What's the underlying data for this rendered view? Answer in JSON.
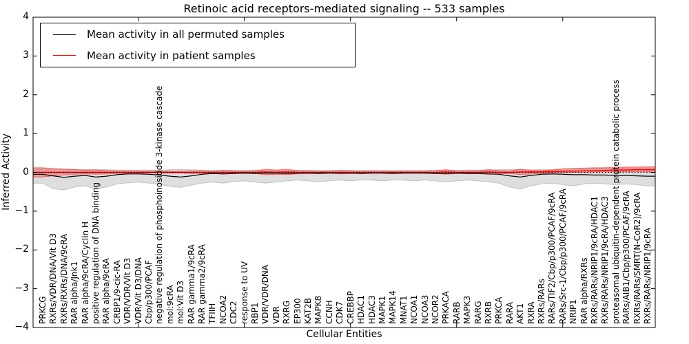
{
  "accent_colors": {
    "permuted": "#000000",
    "patient": "#ff0000",
    "permuted_band": "rgba(0,0,0,0.13)",
    "patient_band": "rgba(255,0,0,0.30)"
  },
  "chart_data": {
    "type": "line",
    "title": "Retinoic acid receptors-mediated signaling -- 533 samples",
    "xlabel": "Cellular Entities",
    "ylabel": "Inferred Activity",
    "ylim": [
      -4,
      4
    ],
    "ytick_labels": [
      "4",
      "3",
      "2",
      "1",
      "0",
      "−1",
      "−2",
      "−3",
      "−4"
    ],
    "ytick_values": [
      4,
      3,
      2,
      1,
      0,
      -1,
      -2,
      -3,
      -4
    ],
    "grid": false,
    "zero_line": true,
    "legend_position": "upper left",
    "categories": [
      "PRKCG",
      "RXRs/VDR/DNA/Vit D3",
      "RXRs/RXRs/DNA/9cRA",
      "RAR alpha/Jnk1",
      "RAR alpha/9cRA/Cyclin H",
      "positive regulation of DNA binding",
      "RAR alpha/9cRA",
      "CRBP1/9-cic-RA",
      "VDR/VDR/Vit D3",
      "VDR/Vit D3/DNA",
      "Cbp/p300/PCAF",
      "negative regulation of phosphoinositide 3-kinase cascade",
      "mol:9cRA",
      "mol:Vit D3",
      "RAR gamma1/9cRA",
      "RAR gamma2/9cRA",
      "TFIIH",
      "NCOA2",
      "CDC2",
      "response to UV",
      "RBP1",
      "VDR/VDR/DNA",
      "VDR",
      "RXRG",
      "EP300",
      "KAT2B",
      "MAPK8",
      "CCNH",
      "CDK7",
      "CREBBP",
      "HDAC1",
      "HDAC3",
      "MAPK1",
      "MAPK14",
      "MNAT1",
      "NCOA1",
      "NCOA3",
      "NCOR2",
      "PRKACA",
      "RARB",
      "MAPK3",
      "RARG",
      "RXRB",
      "PRKCA",
      "RARA",
      "AKT1",
      "RXRA",
      "RXRs/RARs",
      "RARs/TIF2/Cbp/p300/PCAF/9cRA",
      "RARs/Src-1/Cbp/p300/PCAF/9cRA",
      "NRIP1",
      "RAR alpha/RXRs",
      "RXRs/RARs/NRIP1/9cRA/HDAC1",
      "RXRs/RARs/NRIP1/9cRA/HDAC3",
      "proteasomal ubiquitin-dependent protein catabolic process",
      "RARs/AIB1/Cbp/p300/PCAF/9cRA",
      "RXRs/RARs/SMRT(N-CoR2)/9cRA",
      "RXRs/RARs/NRIP1/9cRA"
    ],
    "series": [
      {
        "name": "Mean activity in all permuted samples",
        "color": "#000000",
        "values": [
          -0.05,
          -0.09,
          -0.13,
          -0.1,
          -0.08,
          -0.12,
          -0.1,
          -0.06,
          -0.04,
          -0.04,
          -0.05,
          -0.07,
          -0.1,
          -0.12,
          -0.09,
          -0.05,
          -0.03,
          -0.04,
          -0.03,
          -0.02,
          -0.03,
          -0.02,
          -0.02,
          -0.03,
          -0.02,
          -0.02,
          -0.03,
          -0.02,
          -0.02,
          -0.02,
          -0.03,
          -0.02,
          -0.02,
          -0.03,
          -0.02,
          -0.02,
          -0.02,
          -0.03,
          -0.03,
          -0.02,
          -0.03,
          -0.03,
          -0.04,
          -0.05,
          -0.09,
          -0.12,
          -0.08,
          -0.05,
          -0.04,
          -0.05,
          -0.06,
          -0.06,
          -0.07,
          -0.07,
          -0.08,
          -0.08,
          -0.09,
          -0.1
        ],
        "band_upper": [
          0.1,
          0.08,
          0.07,
          0.08,
          0.07,
          0.08,
          0.07,
          0.06,
          0.06,
          0.05,
          0.06,
          0.06,
          0.07,
          0.08,
          0.07,
          0.06,
          0.05,
          0.06,
          0.05,
          0.05,
          0.06,
          0.05,
          0.05,
          0.05,
          0.05,
          0.05,
          0.05,
          0.05,
          0.05,
          0.05,
          0.05,
          0.05,
          0.05,
          0.05,
          0.05,
          0.05,
          0.05,
          0.06,
          0.06,
          0.05,
          0.06,
          0.06,
          0.07,
          0.07,
          0.08,
          0.08,
          0.07,
          0.07,
          0.08,
          0.09,
          0.1,
          0.1,
          0.1,
          0.11,
          0.11,
          0.12,
          0.12,
          0.12
        ],
        "band_lower": [
          -0.28,
          -0.42,
          -0.46,
          -0.38,
          -0.35,
          -0.43,
          -0.38,
          -0.3,
          -0.27,
          -0.25,
          -0.28,
          -0.31,
          -0.36,
          -0.39,
          -0.33,
          -0.28,
          -0.25,
          -0.28,
          -0.24,
          -0.22,
          -0.25,
          -0.28,
          -0.25,
          -0.22,
          -0.2,
          -0.22,
          -0.25,
          -0.22,
          -0.2,
          -0.22,
          -0.2,
          -0.2,
          -0.22,
          -0.2,
          -0.2,
          -0.22,
          -0.2,
          -0.22,
          -0.25,
          -0.22,
          -0.2,
          -0.22,
          -0.25,
          -0.28,
          -0.38,
          -0.43,
          -0.35,
          -0.3,
          -0.28,
          -0.32,
          -0.35,
          -0.3,
          -0.28,
          -0.3,
          -0.32,
          -0.3,
          -0.32,
          -0.35
        ]
      },
      {
        "name": "Mean activity in patient samples",
        "color": "#ff0000",
        "values": [
          0.0,
          0.0,
          0.0,
          0.0,
          0.0,
          0.0,
          0.0,
          0.0,
          0.0,
          0.0,
          0.0,
          0.0,
          0.0,
          0.0,
          0.0,
          0.0,
          0.0,
          0.0,
          0.0,
          0.0,
          0.0,
          0.01,
          0.0,
          0.01,
          0.0,
          0.0,
          0.0,
          0.0,
          0.0,
          0.0,
          0.0,
          0.0,
          0.0,
          0.0,
          0.0,
          0.0,
          0.0,
          0.0,
          0.01,
          0.0,
          0.0,
          0.0,
          0.01,
          0.0,
          0.0,
          0.01,
          0.01,
          0.01,
          0.02,
          0.03,
          0.03,
          0.04,
          0.04,
          0.05,
          0.06,
          0.06,
          0.07,
          0.07
        ],
        "band_upper": [
          0.12,
          0.1,
          0.09,
          0.07,
          0.06,
          0.06,
          0.05,
          0.04,
          0.04,
          0.04,
          0.03,
          0.03,
          0.03,
          0.03,
          0.04,
          0.04,
          0.03,
          0.05,
          0.04,
          0.03,
          0.04,
          0.08,
          0.06,
          0.08,
          0.05,
          0.04,
          0.03,
          0.03,
          0.05,
          0.04,
          0.03,
          0.03,
          0.03,
          0.03,
          0.03,
          0.03,
          0.03,
          0.04,
          0.07,
          0.04,
          0.04,
          0.04,
          0.07,
          0.05,
          0.04,
          0.08,
          0.05,
          0.05,
          0.06,
          0.09,
          0.1,
          0.11,
          0.12,
          0.12,
          0.13,
          0.14,
          0.14,
          0.15
        ],
        "band_lower": [
          -0.12,
          -0.09,
          -0.07,
          -0.05,
          -0.04,
          -0.05,
          -0.04,
          -0.03,
          -0.03,
          -0.03,
          -0.02,
          -0.02,
          -0.02,
          -0.02,
          -0.03,
          -0.03,
          -0.02,
          -0.04,
          -0.03,
          -0.02,
          -0.03,
          -0.06,
          -0.05,
          -0.06,
          -0.04,
          -0.03,
          -0.02,
          -0.02,
          -0.04,
          -0.03,
          -0.02,
          -0.02,
          -0.02,
          -0.02,
          -0.02,
          -0.02,
          -0.02,
          -0.03,
          -0.05,
          -0.03,
          -0.03,
          -0.03,
          -0.05,
          -0.04,
          -0.03,
          -0.06,
          -0.04,
          -0.03,
          -0.02,
          -0.01,
          0.0,
          0.0,
          0.01,
          0.01,
          0.01,
          0.02,
          0.02,
          0.02
        ]
      }
    ]
  },
  "legend": {
    "entries": [
      {
        "label": "Mean activity in all permuted samples",
        "color": "#000000"
      },
      {
        "label": "Mean activity in patient samples",
        "color": "#ff0000"
      }
    ]
  }
}
